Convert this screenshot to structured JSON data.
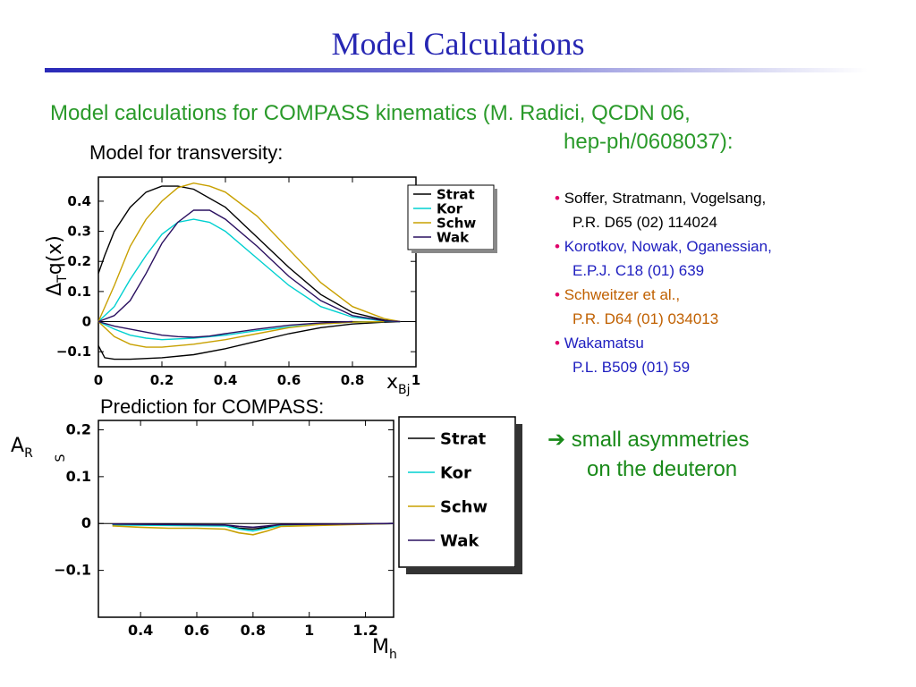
{
  "slide": {
    "title": "Model Calculations",
    "subtitle_line1": "Model calculations for COMPASS kinematics (M. Radici, QCDN 06,",
    "subtitle_line2": "hep-ph/0608037):",
    "top_label": "Model for transversity:",
    "bottom_label": "Prediction for COMPASS:",
    "top_yaxis_label": "ΔTq(x)",
    "top_xaxis_label": "xBj",
    "bottom_yaxis_label": "AR S",
    "bottom_xaxis_label": "Mh",
    "conclusion_arrow": "➔",
    "conclusion_line1": "small asymmetries",
    "conclusion_line2": "on the deuteron"
  },
  "references": [
    {
      "bullet": "•",
      "line1": "Soffer, Stratmann, Vogelsang,",
      "line2": "P.R. D65 (02) 114024",
      "color": "#000000"
    },
    {
      "bullet": "•",
      "line1": "Korotkov, Nowak, Oganessian,",
      "line2": "E.P.J. C18 (01) 639",
      "color": "#2020c0"
    },
    {
      "bullet": "•",
      "line1": "Schweitzer et al.,",
      "line2": "P.R. D64 (01) 034013",
      "color": "#c06000"
    },
    {
      "bullet": "•",
      "line1": "Wakamatsu",
      "line2": "P.L. B509 (01) 59",
      "color": "#2020c0"
    }
  ],
  "chart_data": [
    {
      "type": "line",
      "xlim": [
        0,
        1
      ],
      "ylim": [
        -0.15,
        0.48
      ],
      "xticks": [
        "0",
        "0.2",
        "0.4",
        "0.6",
        "0.8",
        "1"
      ],
      "yticks": [
        "−0.1",
        "0",
        "0.1",
        "0.2",
        "0.3",
        "0.4"
      ],
      "legend": [
        "Strat",
        "Kor",
        "Schw",
        "Wak"
      ],
      "legend_placement": "right",
      "colors": {
        "Strat": "#000000",
        "Kor": "#00d0d0",
        "Schw": "#c8a000",
        "Wak": "#2a1060"
      },
      "series": [
        {
          "name": "Strat",
          "x": [
            0.0,
            0.02,
            0.05,
            0.1,
            0.15,
            0.2,
            0.25,
            0.3,
            0.4,
            0.5,
            0.6,
            0.7,
            0.8,
            0.9,
            0.95
          ],
          "y": [
            0.16,
            0.22,
            0.3,
            0.38,
            0.43,
            0.45,
            0.45,
            0.44,
            0.38,
            0.28,
            0.18,
            0.09,
            0.03,
            0.005,
            0.0
          ]
        },
        {
          "name": "Strat",
          "x": [
            0.0,
            0.02,
            0.05,
            0.1,
            0.2,
            0.3,
            0.4,
            0.5,
            0.6,
            0.7,
            0.8,
            0.9,
            0.95
          ],
          "y": [
            -0.08,
            -0.12,
            -0.125,
            -0.125,
            -0.12,
            -0.11,
            -0.09,
            -0.065,
            -0.04,
            -0.02,
            -0.008,
            -0.002,
            0.0
          ]
        },
        {
          "name": "Kor",
          "x": [
            0.0,
            0.05,
            0.1,
            0.15,
            0.2,
            0.25,
            0.3,
            0.35,
            0.4,
            0.5,
            0.6,
            0.7,
            0.8,
            0.9,
            0.95
          ],
          "y": [
            0.0,
            0.05,
            0.14,
            0.22,
            0.29,
            0.33,
            0.34,
            0.33,
            0.3,
            0.21,
            0.12,
            0.05,
            0.015,
            0.002,
            0.0
          ]
        },
        {
          "name": "Kor",
          "x": [
            0.0,
            0.05,
            0.1,
            0.15,
            0.2,
            0.3,
            0.4,
            0.5,
            0.6,
            0.7,
            0.8,
            0.9
          ],
          "y": [
            0.0,
            -0.025,
            -0.045,
            -0.055,
            -0.06,
            -0.055,
            -0.045,
            -0.03,
            -0.018,
            -0.008,
            -0.002,
            0.0
          ]
        },
        {
          "name": "Schw",
          "x": [
            0.0,
            0.05,
            0.1,
            0.15,
            0.2,
            0.25,
            0.3,
            0.35,
            0.4,
            0.5,
            0.6,
            0.7,
            0.8,
            0.9,
            0.95
          ],
          "y": [
            0.0,
            0.12,
            0.25,
            0.34,
            0.4,
            0.445,
            0.46,
            0.45,
            0.43,
            0.35,
            0.24,
            0.13,
            0.05,
            0.01,
            0.0
          ]
        },
        {
          "name": "Schw",
          "x": [
            0.0,
            0.05,
            0.1,
            0.15,
            0.2,
            0.3,
            0.4,
            0.5,
            0.6,
            0.7,
            0.8,
            0.9
          ],
          "y": [
            0.0,
            -0.05,
            -0.075,
            -0.085,
            -0.085,
            -0.075,
            -0.06,
            -0.04,
            -0.02,
            -0.008,
            -0.002,
            0.0
          ]
        },
        {
          "name": "Wak",
          "x": [
            0.0,
            0.05,
            0.1,
            0.15,
            0.2,
            0.25,
            0.3,
            0.35,
            0.4,
            0.5,
            0.6,
            0.7,
            0.8,
            0.9,
            0.95
          ],
          "y": [
            0.0,
            0.02,
            0.07,
            0.16,
            0.26,
            0.33,
            0.37,
            0.37,
            0.34,
            0.25,
            0.15,
            0.07,
            0.02,
            0.003,
            0.0
          ]
        },
        {
          "name": "Wak",
          "x": [
            0.0,
            0.05,
            0.1,
            0.15,
            0.2,
            0.25,
            0.3,
            0.35,
            0.4,
            0.5,
            0.6,
            0.7,
            0.8
          ],
          "y": [
            0.0,
            -0.015,
            -0.025,
            -0.035,
            -0.045,
            -0.05,
            -0.052,
            -0.048,
            -0.04,
            -0.025,
            -0.012,
            -0.004,
            0.0
          ]
        }
      ]
    },
    {
      "type": "line",
      "xlim": [
        0.25,
        1.3
      ],
      "ylim": [
        -0.2,
        0.22
      ],
      "xticks": [
        "0.4",
        "0.6",
        "0.8",
        "1",
        "1.2"
      ],
      "yticks": [
        "−0.1",
        "0",
        "0.1",
        "0.2"
      ],
      "legend": [
        "Strat",
        "Kor",
        "Schw",
        "Wak"
      ],
      "legend_placement": "right",
      "colors": {
        "Strat": "#000000",
        "Kor": "#00d0d0",
        "Schw": "#c8a000",
        "Wak": "#2a1060"
      },
      "series": [
        {
          "name": "Strat",
          "x": [
            0.3,
            0.5,
            0.7,
            0.75,
            0.8,
            0.85,
            0.9,
            1.1,
            1.3
          ],
          "y": [
            -0.002,
            -0.003,
            -0.004,
            -0.01,
            -0.012,
            -0.008,
            -0.003,
            -0.002,
            0.0
          ]
        },
        {
          "name": "Kor",
          "x": [
            0.3,
            0.5,
            0.7,
            0.75,
            0.8,
            0.85,
            0.9,
            1.1,
            1.3
          ],
          "y": [
            -0.003,
            -0.004,
            -0.005,
            -0.012,
            -0.016,
            -0.01,
            -0.004,
            -0.002,
            0.0
          ]
        },
        {
          "name": "Schw",
          "x": [
            0.3,
            0.4,
            0.5,
            0.6,
            0.7,
            0.75,
            0.8,
            0.85,
            0.9,
            1.1,
            1.3
          ],
          "y": [
            -0.005,
            -0.008,
            -0.01,
            -0.01,
            -0.012,
            -0.02,
            -0.024,
            -0.016,
            -0.006,
            -0.003,
            0.0
          ]
        },
        {
          "name": "Wak",
          "x": [
            0.3,
            0.5,
            0.7,
            0.75,
            0.8,
            0.85,
            0.9,
            1.1,
            1.3
          ],
          "y": [
            -0.001,
            -0.002,
            -0.003,
            -0.006,
            -0.008,
            -0.005,
            -0.002,
            -0.001,
            0.0
          ]
        }
      ]
    }
  ]
}
